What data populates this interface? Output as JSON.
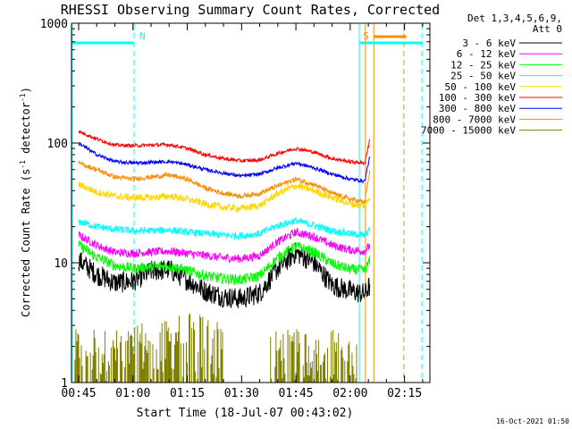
{
  "chart_data": {
    "type": "line",
    "title": "RHESSI Observing Summary Count Rates, Corrected",
    "xlabel": "Start Time (18-Jul-07 00:43:02)",
    "ylabel": "Corrected Count Rate (s",
    "ylabel_sup1": "-1",
    "ylabel_mid": " detector",
    "ylabel_sup2": "-1",
    "ylabel_end": ")",
    "yscale": "log",
    "ylim": [
      1,
      1000
    ],
    "xlim_minutes": [
      43.03,
      142
    ],
    "x_ticks": [
      {
        "label": "00:45",
        "minutes": 45
      },
      {
        "label": "01:00",
        "minutes": 60
      },
      {
        "label": "01:15",
        "minutes": 75
      },
      {
        "label": "01:30",
        "minutes": 90
      },
      {
        "label": "01:45",
        "minutes": 105
      },
      {
        "label": "02:00",
        "minutes": 120
      },
      {
        "label": "02:15",
        "minutes": 135
      }
    ],
    "y_ticks": [
      {
        "label": "1",
        "value": 1
      },
      {
        "label": "10",
        "value": 10
      },
      {
        "label": "100",
        "value": 100
      },
      {
        "label": "1000",
        "value": 1000
      }
    ],
    "legend_header": [
      "Det 1,3,4,5,6,9,",
      "Att 0"
    ],
    "legend_placement": "right",
    "time_minutes": [
      45,
      50,
      55,
      60,
      65,
      70,
      75,
      80,
      85,
      90,
      95,
      100,
      105,
      110,
      115,
      120,
      124,
      125.5
    ],
    "series": [
      {
        "name": "3 - 6 keV",
        "color": "#000000",
        "noise": 0.09,
        "values": [
          10.5,
          8.0,
          6.8,
          7.0,
          8.5,
          8.8,
          7.2,
          5.8,
          5.2,
          5.0,
          5.6,
          9.0,
          12.2,
          10.0,
          6.5,
          5.8,
          5.5,
          6.5
        ]
      },
      {
        "name": "6 - 12 keV",
        "color": "#ff00ff",
        "noise": 0.035,
        "values": [
          17.0,
          14.0,
          12.2,
          12.0,
          12.3,
          12.5,
          12.0,
          11.5,
          11.0,
          10.8,
          11.5,
          15.0,
          18.0,
          16.5,
          14.0,
          12.8,
          12.5,
          14.0
        ]
      },
      {
        "name": "12 - 25 keV",
        "color": "#00ff00",
        "noise": 0.045,
        "values": [
          14.0,
          11.2,
          9.5,
          9.0,
          9.2,
          9.4,
          8.6,
          7.8,
          7.4,
          7.2,
          7.8,
          11.0,
          13.8,
          12.2,
          9.8,
          8.8,
          8.6,
          10.5
        ]
      },
      {
        "name": "25 - 50 keV",
        "color": "#00ffff",
        "noise": 0.03,
        "values": [
          22.0,
          20.0,
          19.0,
          18.5,
          18.5,
          18.8,
          18.0,
          17.5,
          17.0,
          16.8,
          17.5,
          20.5,
          22.5,
          20.5,
          18.5,
          17.5,
          17.0,
          19.0
        ]
      },
      {
        "name": "50 - 100 keV",
        "color": "#ffd700",
        "noise": 0.03,
        "values": [
          45.0,
          39.0,
          36.0,
          35.0,
          35.0,
          36.0,
          34.0,
          31.0,
          29.0,
          28.5,
          30.0,
          38.0,
          44.0,
          40.0,
          35.0,
          31.0,
          30.0,
          36.0
        ]
      },
      {
        "name": "100 - 300 keV",
        "color": "#ff0000",
        "noise": 0.015,
        "values": [
          125.0,
          108.0,
          96.0,
          95.0,
          96.0,
          97.0,
          90.0,
          80.0,
          74.0,
          71.0,
          72.0,
          82.0,
          90.0,
          84.0,
          74.0,
          70.0,
          68.0,
          110.0
        ]
      },
      {
        "name": "300 - 800 keV",
        "color": "#0000ff",
        "noise": 0.015,
        "values": [
          100.0,
          80.0,
          70.0,
          68.0,
          69.0,
          70.0,
          66.0,
          60.0,
          56.0,
          53.0,
          55.0,
          62.0,
          68.0,
          62.0,
          55.0,
          50.0,
          48.0,
          80.0
        ]
      },
      {
        "name": "800 - 7000 keV",
        "color": "#ff8c00",
        "noise": 0.02,
        "values": [
          68.0,
          60.0,
          52.0,
          50.0,
          52.0,
          54.0,
          50.0,
          42.0,
          38.0,
          36.0,
          38.0,
          44.0,
          50.0,
          45.0,
          38.0,
          34.0,
          32.0,
          60.0
        ]
      },
      {
        "name": "7000 - 15000 keV",
        "color": "#808000",
        "noise": 0,
        "values": []
      }
    ],
    "annotations": [
      {
        "label": "N",
        "color": "#00ffff",
        "line_minutes": 60.3,
        "bar_start": 43.03,
        "bar_end": 60.3
      },
      {
        "label": "S",
        "color": "#ff8c00",
        "line_minutes": 126.5,
        "bar_start": 126.5,
        "bar_end": 135.5
      },
      {
        "label": "",
        "color": "#00ffff",
        "line_minutes": 122.5,
        "bar_start": 122.5,
        "bar_end": 140.0
      },
      {
        "label": "",
        "color": "#00ffff",
        "line_minutes": 139.8,
        "bar_start": null,
        "bar_end": null
      },
      {
        "label": "",
        "color": "#ff8c00",
        "line_minutes": 134.8,
        "bar_start": null,
        "bar_end": null
      },
      {
        "label": "",
        "color": "#00ffff",
        "line_minutes": 43.2,
        "bar_start": null,
        "bar_end": null
      }
    ],
    "grid": false
  },
  "timestamp": "16-Oct-2021 01:50"
}
